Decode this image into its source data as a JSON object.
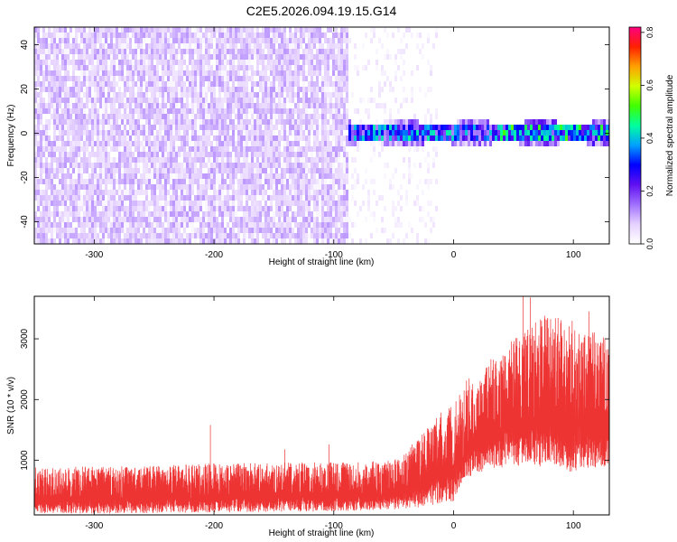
{
  "figure": {
    "title": "C2E5.2026.094.19.15.G14"
  },
  "chart_data": [
    {
      "type": "heatmap",
      "xlabel": "Height of straight line (km)",
      "ylabel": "Frequency (Hz)",
      "xlim": [
        -350,
        130
      ],
      "ylim": [
        -50,
        48
      ],
      "xticks": [
        "-300",
        "-200",
        "-100",
        "0",
        "100"
      ],
      "yticks": [
        "-40",
        "-20",
        "0",
        "20",
        "40"
      ],
      "colorbar": {
        "label": "Normalized spectral amplitude",
        "range": [
          0,
          0.82
        ],
        "ticks": [
          "0.0",
          "0.2",
          "0.4",
          "0.6",
          "0.8"
        ],
        "colormap": [
          "#ffffff",
          "#e6d2ff",
          "#a070ff",
          "#6010f0",
          "#0000ff",
          "#00a0ff",
          "#00ffa0",
          "#40ff00",
          "#d0ff00",
          "#ffa000",
          "#ff2000",
          "#ff0080"
        ]
      },
      "regions": [
        {
          "x": [
            -350,
            -90
          ],
          "freq_band": [
            -50,
            48
          ],
          "amplitude": 0.05,
          "texture": "broadband noise"
        },
        {
          "x": [
            -90,
            -15
          ],
          "freq_band": [
            -50,
            48
          ],
          "amplitude": 0.02,
          "texture": "sparse noise"
        },
        {
          "x": [
            -90,
            130
          ],
          "freq_band": [
            -5,
            5
          ],
          "amplitude": 0.4,
          "texture": "narrowband signal near 0 Hz"
        }
      ]
    },
    {
      "type": "line",
      "xlabel": "Height of straight line (km)",
      "ylabel": "SNR (10 * v/v)",
      "xlim": [
        -350,
        130
      ],
      "ylim": [
        100,
        3700
      ],
      "xticks": [
        "-300",
        "-200",
        "-100",
        "0",
        "100"
      ],
      "yticks": [
        "1000",
        "2000",
        "3000"
      ],
      "series": [
        {
          "color": "#ee3333",
          "envelope": [
            {
              "x": -350,
              "low": 120,
              "high": 880
            },
            {
              "x": -300,
              "low": 120,
              "high": 900
            },
            {
              "x": -250,
              "low": 130,
              "high": 910
            },
            {
              "x": -200,
              "low": 140,
              "high": 950
            },
            {
              "x": -150,
              "low": 150,
              "high": 960
            },
            {
              "x": -100,
              "low": 160,
              "high": 970
            },
            {
              "x": -75,
              "low": 170,
              "high": 980
            },
            {
              "x": -50,
              "low": 190,
              "high": 1000
            },
            {
              "x": -30,
              "low": 220,
              "high": 1350
            },
            {
              "x": -20,
              "low": 250,
              "high": 1600
            },
            {
              "x": -10,
              "low": 300,
              "high": 1800
            },
            {
              "x": 0,
              "low": 300,
              "high": 1900
            },
            {
              "x": 10,
              "low": 700,
              "high": 2300
            },
            {
              "x": 30,
              "low": 850,
              "high": 2700
            },
            {
              "x": 50,
              "low": 900,
              "high": 3000
            },
            {
              "x": 75,
              "low": 900,
              "high": 3400
            },
            {
              "x": 100,
              "low": 800,
              "high": 3300
            },
            {
              "x": 130,
              "low": 900,
              "high": 3000
            }
          ],
          "spikes": [
            {
              "x": -203,
              "y": 1580
            },
            {
              "x": -141,
              "y": 1180
            },
            {
              "x": -104,
              "y": 1260
            },
            {
              "x": 58,
              "y": 3720
            },
            {
              "x": 64,
              "y": 3680
            },
            {
              "x": 113,
              "y": 3450
            }
          ]
        }
      ]
    }
  ]
}
